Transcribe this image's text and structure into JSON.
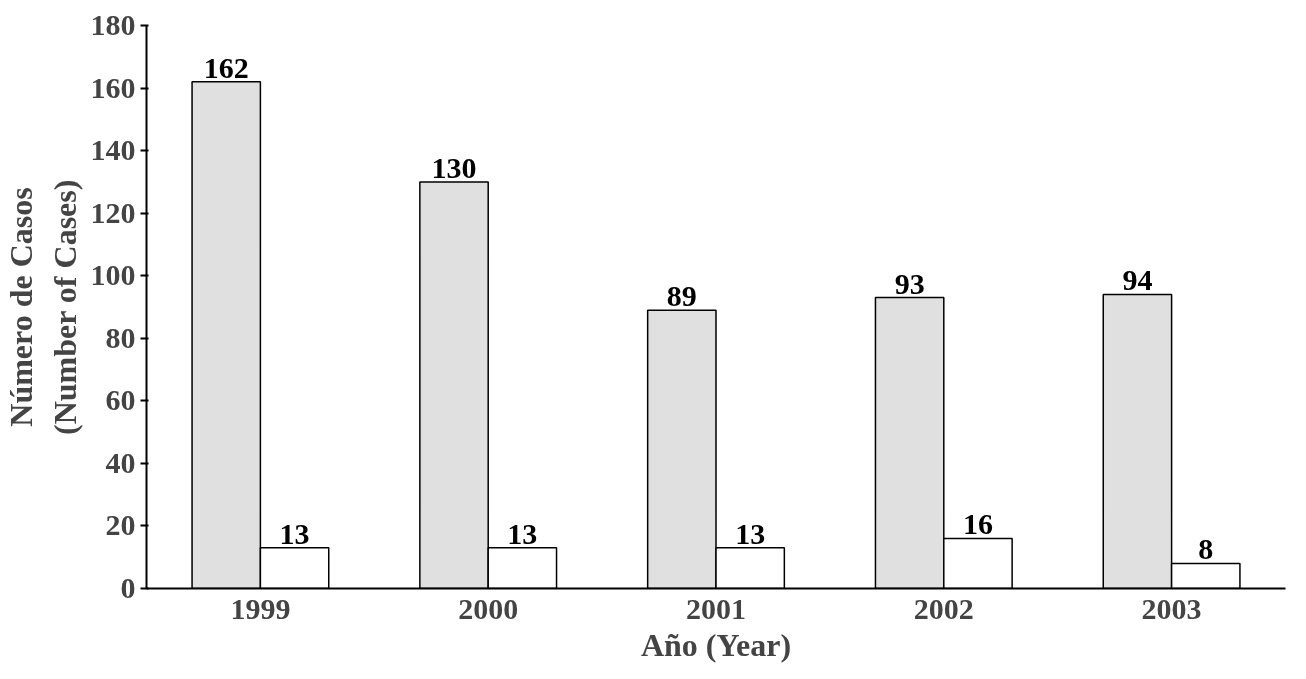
{
  "chart_data": {
    "type": "bar",
    "xlabel": "Año (Year)",
    "ylabel": "Número de Casos\n(Number of Cases)",
    "categories": [
      "1999",
      "2000",
      "2001",
      "2002",
      "2003"
    ],
    "series": [
      {
        "color": "#e0e0e0",
        "values": [
          162,
          130,
          89,
          93,
          94
        ]
      },
      {
        "color": "#ffffff",
        "values": [
          13,
          13,
          13,
          16,
          8
        ]
      }
    ],
    "ylim": [
      0,
      180
    ],
    "yticks": [
      0,
      20,
      40,
      60,
      80,
      100,
      120,
      140,
      160,
      180
    ],
    "data_labels": true,
    "grid": false
  }
}
